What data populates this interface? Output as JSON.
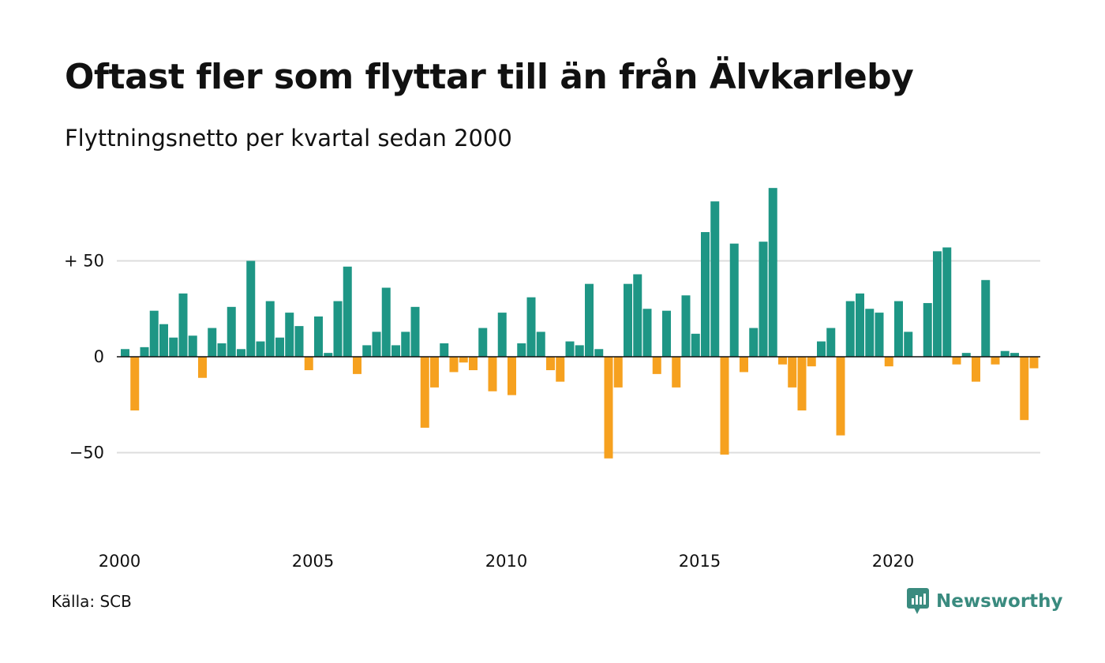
{
  "title": "Oftast fler som flyttar till än från Älvkarleby",
  "subtitle": "Flyttningsnetto per kvartal sedan 2000",
  "source": "Källa: SCB",
  "brand": "Newsworthy",
  "colors": {
    "positive": "#1e9685",
    "negative": "#f6a11f",
    "grid": "#dddddd",
    "axis": "#111111",
    "brand": "#3a8b7f"
  },
  "chart_data": {
    "type": "bar",
    "title": "Oftast fler som flyttar till än från Älvkarleby",
    "subtitle": "Flyttningsnetto per kvartal sedan 2000",
    "xlabel": "",
    "ylabel": "",
    "x_start": 2000,
    "periods_per_year": 4,
    "x_ticks": [
      {
        "value": 2000,
        "label": "2000"
      },
      {
        "value": 2005,
        "label": "2005"
      },
      {
        "value": 2010,
        "label": "2010"
      },
      {
        "value": 2015,
        "label": "2015"
      },
      {
        "value": 2020,
        "label": "2020"
      }
    ],
    "y_ticks": [
      {
        "value": 50,
        "label": "+ 50"
      },
      {
        "value": 0,
        "label": "0"
      },
      {
        "value": -50,
        "label": "−50"
      }
    ],
    "ylim": [
      -91,
      95
    ],
    "grid": true,
    "values": [
      4,
      -28,
      5,
      24,
      17,
      10,
      33,
      11,
      -11,
      15,
      7,
      26,
      4,
      50,
      8,
      29,
      10,
      23,
      16,
      -7,
      21,
      2,
      29,
      47,
      -9,
      6,
      13,
      36,
      6,
      13,
      26,
      -37,
      -16,
      7,
      -8,
      -3,
      -7,
      15,
      -18,
      23,
      -20,
      7,
      31,
      13,
      -7,
      -13,
      8,
      6,
      38,
      4,
      -53,
      -16,
      38,
      43,
      25,
      -9,
      24,
      -16,
      32,
      12,
      65,
      81,
      -51,
      59,
      -8,
      15,
      60,
      88,
      -4,
      -16,
      -28,
      -5,
      8,
      15,
      -41,
      29,
      33,
      25,
      23,
      -5,
      29,
      13,
      0,
      28,
      55,
      57,
      -4,
      2,
      -13,
      40,
      -4,
      3,
      2,
      -33,
      -6
    ]
  }
}
